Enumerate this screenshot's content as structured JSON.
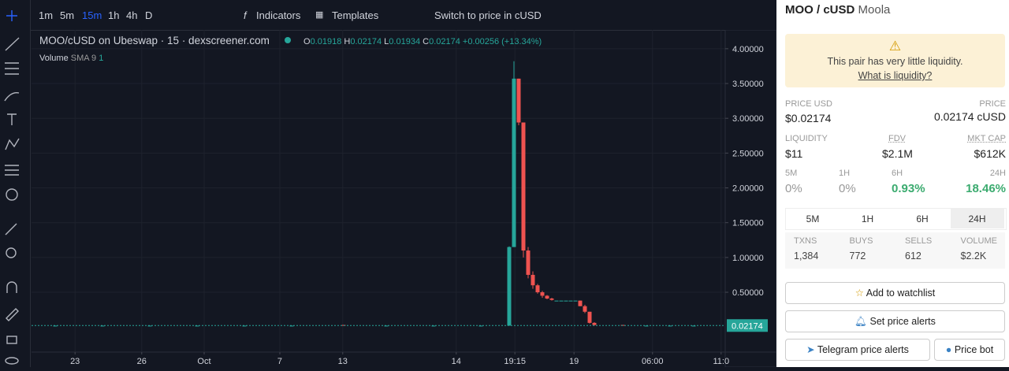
{
  "toolbar": {
    "intervals": [
      "1m",
      "5m",
      "15m",
      "1h",
      "4h",
      "D"
    ],
    "indicators": "Indicators",
    "templates": "Templates",
    "switch": "Switch to price in cUSD"
  },
  "chart_data": {
    "type": "candlestick",
    "title": "MOO/cUSD on Ubeswap · 15 · dexscreener.com",
    "ohlc": {
      "o_key": "O",
      "o": "0.01918",
      "h_key": "H",
      "h": "0.02174",
      "l_key": "L",
      "l": "0.01934",
      "c_key": "C",
      "c": "0.02174",
      "change": "+0.00256 (+13.34%)"
    },
    "volume_label": "Volume",
    "sma_label": "SMA 9",
    "sma_value": "1",
    "up_color": "#26a69a",
    "down_color": "#ef5350",
    "series": {
      "x": [
        5,
        15,
        25,
        35,
        45,
        55,
        66,
        75,
        85,
        95,
        101,
        102,
        103,
        104,
        105,
        106,
        107,
        108,
        109,
        110,
        111,
        112,
        113,
        114,
        115,
        116,
        117,
        118,
        119,
        125,
        130,
        135,
        140
      ],
      "open": [
        0.02,
        0.02,
        0.02,
        0.02,
        0.02,
        0.02,
        0.03,
        0.02,
        0.02,
        0.02,
        0.02,
        1.15,
        3.57,
        2.94,
        1.1,
        0.75,
        0.6,
        0.5,
        0.45,
        0.41,
        0.38,
        0.38,
        0.38,
        0.38,
        0.38,
        0.38,
        0.3,
        0.22,
        0.06,
        0.03,
        0.02,
        0.02,
        0.02
      ],
      "high": [
        0.02,
        0.02,
        0.02,
        0.02,
        0.02,
        0.02,
        0.03,
        0.02,
        0.02,
        0.02,
        1.16,
        3.82,
        3.57,
        2.94,
        1.15,
        0.8,
        0.62,
        0.52,
        0.46,
        0.42,
        0.38,
        0.38,
        0.38,
        0.38,
        0.38,
        0.38,
        0.32,
        0.22,
        0.07,
        0.03,
        0.02,
        0.02,
        0.02
      ],
      "low": [
        0.02,
        0.02,
        0.02,
        0.02,
        0.02,
        0.02,
        0.02,
        0.02,
        0.02,
        0.02,
        0.02,
        1.15,
        2.9,
        1.0,
        0.7,
        0.55,
        0.48,
        0.42,
        0.4,
        0.38,
        0.38,
        0.38,
        0.38,
        0.38,
        0.38,
        0.3,
        0.2,
        0.05,
        0.02,
        0.02,
        0.02,
        0.02,
        0.02
      ],
      "close": [
        0.02,
        0.02,
        0.02,
        0.02,
        0.02,
        0.02,
        0.02,
        0.02,
        0.02,
        0.02,
        1.15,
        3.57,
        2.94,
        1.1,
        0.75,
        0.6,
        0.5,
        0.45,
        0.41,
        0.39,
        0.38,
        0.38,
        0.38,
        0.38,
        0.38,
        0.3,
        0.22,
        0.06,
        0.03,
        0.02,
        0.02,
        0.02,
        0.02
      ]
    },
    "ylim": [
      -0.36,
      4.27
    ],
    "yticks": [
      {
        "value": 0.5,
        "label": "0.50000"
      },
      {
        "value": 1,
        "label": "1.00000"
      },
      {
        "value": 1.5,
        "label": "1.50000"
      },
      {
        "value": 2,
        "label": "2.00000"
      },
      {
        "value": 2.5,
        "label": "2.50000"
      },
      {
        "value": 3,
        "label": "3.00000"
      },
      {
        "value": 3.5,
        "label": "3.50000"
      },
      {
        "value": 4,
        "label": "4.00000"
      }
    ],
    "xlim": [
      0,
      146.67
    ],
    "xticks": [
      {
        "value": 9.2,
        "label": "23"
      },
      {
        "value": 23.3,
        "label": "26"
      },
      {
        "value": 36.5,
        "label": "Oct"
      },
      {
        "value": 52.5,
        "label": "7"
      },
      {
        "value": 65.8,
        "label": "13"
      },
      {
        "value": 89.8,
        "label": "14"
      },
      {
        "value": 102.2,
        "label": "19:15"
      },
      {
        "value": 114.7,
        "label": "19"
      },
      {
        "value": 131.3,
        "label": "06:00"
      },
      {
        "value": 145.8,
        "label": "11:0"
      }
    ],
    "grid": true,
    "last_price": 0.02174
  },
  "pair": {
    "name": "MOO / cUSD",
    "token": "Moola",
    "warning": "This pair has very little liquidity.",
    "warning_link": "What is liquidity?",
    "price_usd_label": "PRICE USD",
    "price_usd": "$0.02174",
    "price_label": "PRICE",
    "price": "0.02174 cUSD",
    "liquidity_label": "LIQUIDITY",
    "liquidity": "$11",
    "fdv_label": "FDV",
    "fdv": "$2.1M",
    "mcap_label": "MKT CAP",
    "mcap": "$612K",
    "changes": [
      {
        "label": "5M",
        "value": "0%"
      },
      {
        "label": "1H",
        "value": "0%"
      },
      {
        "label": "6H",
        "value": "0.93%"
      },
      {
        "label": "24H",
        "value": "18.46%"
      }
    ],
    "tabs": [
      "5M",
      "1H",
      "6H",
      "24H"
    ],
    "stats": [
      {
        "label": "TXNS",
        "value": "1,384"
      },
      {
        "label": "BUYS",
        "value": "772"
      },
      {
        "label": "SELLS",
        "value": "612"
      },
      {
        "label": "VOLUME",
        "value": "$2.2K"
      }
    ],
    "buttons": {
      "watchlist": "Add to watchlist",
      "alerts": "Set price alerts",
      "telegram": "Telegram price alerts",
      "bot": "Price bot"
    }
  }
}
